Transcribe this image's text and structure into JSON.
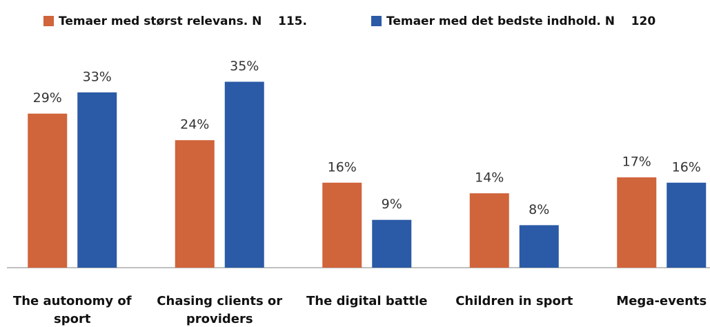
{
  "chart_data": {
    "type": "bar",
    "categories": [
      "The autonomy of sport",
      "Chasing clients or providers",
      "The digital battle",
      "Children in sport",
      "Mega-events"
    ],
    "series": [
      {
        "name": "Temaer med størst relevans. N    115.",
        "color": "#d0643a",
        "values": [
          29,
          24,
          16,
          14,
          17
        ],
        "value_labels": [
          "29%",
          "24%",
          "16%",
          "14%",
          "17%"
        ]
      },
      {
        "name": "Temaer med det bedste indhold. N    120",
        "color": "#2b5aa6",
        "values": [
          33,
          35,
          9,
          8,
          16
        ],
        "value_labels": [
          "33%",
          "35%",
          "9%",
          "8%",
          "16%"
        ]
      }
    ],
    "ylim": [
      0,
      40
    ],
    "legend": "top"
  }
}
